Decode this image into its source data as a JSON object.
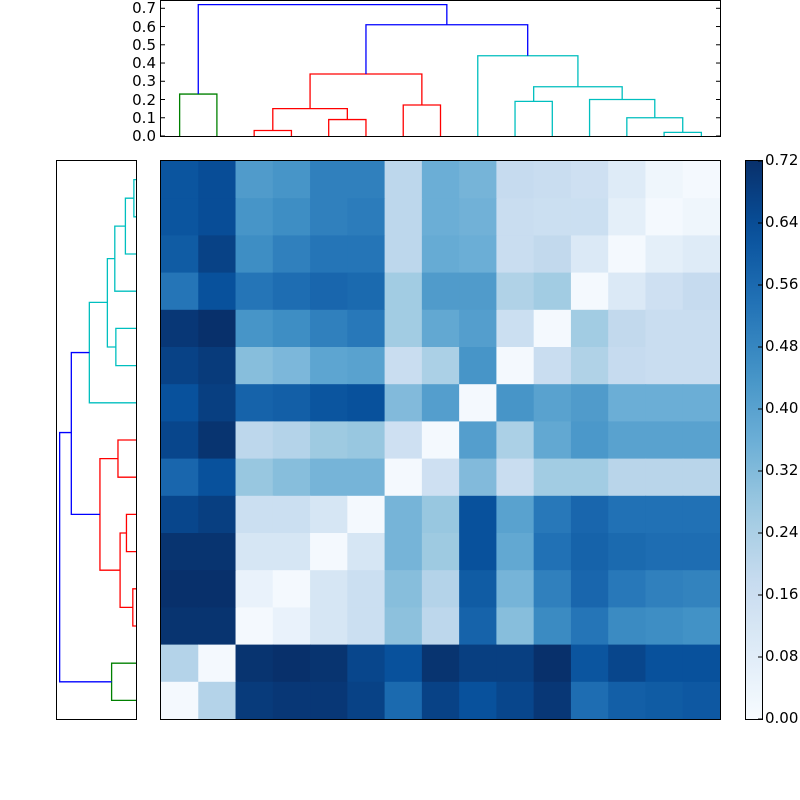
{
  "chart_data": {
    "type": "heatmap",
    "title": "",
    "description": "Clustered heatmap (15x15 distance matrix) with row and column dendrograms and a colorbar",
    "colormap": "Blues",
    "colorbar": {
      "min": 0.0,
      "max": 0.72,
      "ticks": [
        "0.00",
        "0.08",
        "0.16",
        "0.24",
        "0.32",
        "0.40",
        "0.48",
        "0.56",
        "0.64",
        "0.72"
      ]
    },
    "top_dendrogram": {
      "yaxis_ticks": [
        "0.0",
        "0.1",
        "0.2",
        "0.3",
        "0.4",
        "0.5",
        "0.6",
        "0.7"
      ],
      "ylim": [
        0.0,
        0.74
      ],
      "cluster_colors": [
        "#008000",
        "#ff0000",
        "#00bfbf",
        "#0000ff"
      ],
      "links": [
        {
          "x": [
            1,
            2
          ],
          "h": 0.23,
          "color": "#008000"
        },
        {
          "x": [
            3,
            4
          ],
          "h": 0.03,
          "color": "#ff0000"
        },
        {
          "x": [
            5,
            6
          ],
          "h": 0.09,
          "color": "#ff0000"
        },
        {
          "x": [
            3.5,
            5.5
          ],
          "h": 0.15,
          "color": "#ff0000"
        },
        {
          "x": [
            7,
            8
          ],
          "h": 0.17,
          "color": "#ff0000"
        },
        {
          "x": [
            4.5,
            7.5
          ],
          "h": 0.34,
          "color": "#ff0000"
        },
        {
          "x": [
            14,
            15
          ],
          "h": 0.02,
          "color": "#00bfbf"
        },
        {
          "x": [
            13,
            14.5
          ],
          "h": 0.1,
          "color": "#00bfbf"
        },
        {
          "x": [
            12,
            13.75
          ],
          "h": 0.2,
          "color": "#00bfbf"
        },
        {
          "x": [
            10,
            11
          ],
          "h": 0.19,
          "color": "#00bfbf"
        },
        {
          "x": [
            10.5,
            12.875
          ],
          "h": 0.27,
          "color": "#00bfbf"
        },
        {
          "x": [
            9,
            11.6875
          ],
          "h": 0.44,
          "color": "#00bfbf"
        },
        {
          "x": [
            6,
            10.34
          ],
          "h": 0.61,
          "color": "#0000ff"
        },
        {
          "x": [
            1.5,
            8.17
          ],
          "h": 0.72,
          "color": "#0000ff"
        }
      ]
    },
    "left_dendrogram": {
      "links": [
        {
          "y": [
            1,
            2
          ],
          "d": 0.02,
          "color": "#00bfbf"
        },
        {
          "y": [
            1.5,
            3
          ],
          "d": 0.1,
          "color": "#00bfbf"
        },
        {
          "y": [
            2.25,
            4
          ],
          "d": 0.2,
          "color": "#00bfbf"
        },
        {
          "y": [
            5,
            6
          ],
          "d": 0.19,
          "color": "#00bfbf"
        },
        {
          "y": [
            3.125,
            5.5
          ],
          "d": 0.27,
          "color": "#00bfbf"
        },
        {
          "y": [
            4.3,
            7
          ],
          "d": 0.44,
          "color": "#00bfbf"
        },
        {
          "y": [
            8,
            9
          ],
          "d": 0.17,
          "color": "#ff0000"
        },
        {
          "y": [
            10,
            11
          ],
          "d": 0.09,
          "color": "#ff0000"
        },
        {
          "y": [
            12,
            13
          ],
          "d": 0.03,
          "color": "#ff0000"
        },
        {
          "y": [
            10.5,
            12.5
          ],
          "d": 0.15,
          "color": "#ff0000"
        },
        {
          "y": [
            8.5,
            11.5
          ],
          "d": 0.34,
          "color": "#ff0000"
        },
        {
          "y": [
            5.65,
            10
          ],
          "d": 0.61,
          "color": "#0000ff"
        },
        {
          "y": [
            14,
            15
          ],
          "d": 0.23,
          "color": "#008000"
        },
        {
          "y": [
            7.8,
            14.5
          ],
          "d": 0.72,
          "color": "#0000ff"
        }
      ]
    },
    "matrix": [
      [
        0.62,
        0.64,
        0.42,
        0.44,
        0.5,
        0.5,
        0.2,
        0.36,
        0.34,
        0.18,
        0.17,
        0.15,
        0.09,
        0.03,
        0.01
      ],
      [
        0.62,
        0.64,
        0.44,
        0.46,
        0.5,
        0.51,
        0.2,
        0.36,
        0.35,
        0.17,
        0.16,
        0.16,
        0.07,
        0.01,
        0.03
      ],
      [
        0.6,
        0.67,
        0.46,
        0.5,
        0.53,
        0.53,
        0.2,
        0.37,
        0.36,
        0.17,
        0.19,
        0.1,
        0.01,
        0.07,
        0.09
      ],
      [
        0.53,
        0.63,
        0.53,
        0.55,
        0.57,
        0.56,
        0.26,
        0.42,
        0.42,
        0.23,
        0.26,
        0.01,
        0.1,
        0.15,
        0.18
      ],
      [
        0.7,
        0.72,
        0.44,
        0.46,
        0.5,
        0.52,
        0.26,
        0.38,
        0.41,
        0.16,
        0.01,
        0.26,
        0.19,
        0.17,
        0.17
      ],
      [
        0.67,
        0.69,
        0.31,
        0.33,
        0.39,
        0.4,
        0.17,
        0.24,
        0.44,
        0.01,
        0.17,
        0.23,
        0.18,
        0.17,
        0.17
      ],
      [
        0.63,
        0.68,
        0.58,
        0.59,
        0.62,
        0.63,
        0.32,
        0.41,
        0.01,
        0.44,
        0.4,
        0.42,
        0.36,
        0.36,
        0.36
      ],
      [
        0.66,
        0.71,
        0.2,
        0.22,
        0.27,
        0.28,
        0.15,
        0.01,
        0.41,
        0.24,
        0.38,
        0.43,
        0.4,
        0.4,
        0.4
      ],
      [
        0.57,
        0.63,
        0.28,
        0.31,
        0.34,
        0.34,
        0.01,
        0.15,
        0.32,
        0.17,
        0.26,
        0.26,
        0.21,
        0.21,
        0.21
      ],
      [
        0.66,
        0.68,
        0.16,
        0.16,
        0.12,
        0.01,
        0.34,
        0.28,
        0.63,
        0.4,
        0.52,
        0.57,
        0.54,
        0.54,
        0.54
      ],
      [
        0.71,
        0.71,
        0.12,
        0.12,
        0.01,
        0.12,
        0.34,
        0.27,
        0.63,
        0.38,
        0.54,
        0.58,
        0.56,
        0.55,
        0.55
      ],
      [
        0.72,
        0.72,
        0.05,
        0.01,
        0.12,
        0.16,
        0.31,
        0.22,
        0.6,
        0.34,
        0.5,
        0.57,
        0.52,
        0.5,
        0.49
      ],
      [
        0.71,
        0.71,
        0.01,
        0.05,
        0.12,
        0.16,
        0.3,
        0.2,
        0.58,
        0.31,
        0.47,
        0.53,
        0.47,
        0.46,
        0.45
      ],
      [
        0.22,
        0.01,
        0.71,
        0.72,
        0.71,
        0.66,
        0.63,
        0.71,
        0.68,
        0.68,
        0.72,
        0.62,
        0.66,
        0.63,
        0.63
      ],
      [
        0.01,
        0.22,
        0.69,
        0.7,
        0.7,
        0.67,
        0.56,
        0.67,
        0.63,
        0.66,
        0.7,
        0.55,
        0.59,
        0.6,
        0.61
      ]
    ],
    "xlabel": "",
    "ylabel": "",
    "grid": false
  }
}
